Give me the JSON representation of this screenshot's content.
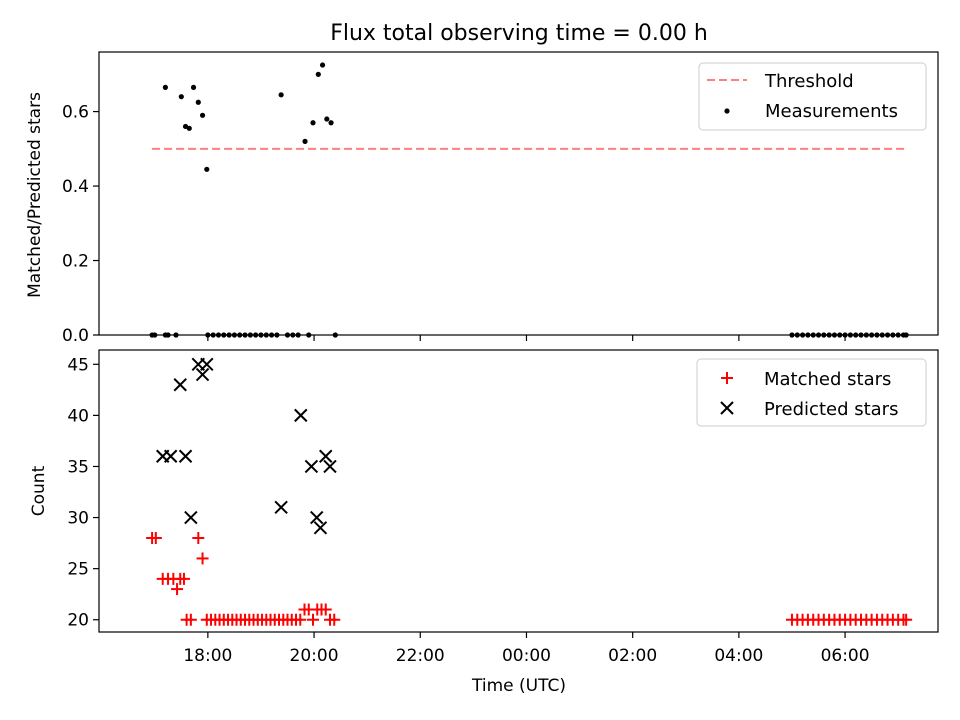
{
  "chart_data": [
    {
      "type": "scatter",
      "title": "Flux total observing time = 0.00 h",
      "xlabel": "",
      "ylabel": "Matched/Predicted stars",
      "xlim": [
        -1.05,
        14.75
      ],
      "ylim": [
        0.0,
        0.76
      ],
      "x_tick_values": [
        1,
        3,
        5,
        7,
        9,
        11,
        13
      ],
      "y_ticks": [
        {
          "value": 0.0,
          "label": "0.0"
        },
        {
          "value": 0.2,
          "label": "0.2"
        },
        {
          "value": 0.4,
          "label": "0.4"
        },
        {
          "value": 0.6,
          "label": "0.6"
        }
      ],
      "legend": {
        "position": "top-right",
        "entries": [
          "Threshold",
          "Measurements"
        ]
      },
      "colors": {
        "threshold": "#ff7f7f",
        "measurements": "#000000"
      },
      "threshold": {
        "name": "Threshold",
        "value": 0.5,
        "x_range": [
          -0.05,
          14.15
        ]
      },
      "series": [
        {
          "name": "Measurements",
          "marker": "point",
          "x": [
            -0.05,
            0.0,
            0.2,
            0.25,
            0.2,
            0.4,
            0.5,
            0.58,
            0.65,
            0.73,
            0.82,
            0.9,
            0.98,
            1.0,
            1.1,
            1.2,
            1.3,
            1.4,
            1.5,
            1.6,
            1.7,
            1.8,
            1.9,
            2.0,
            2.1,
            2.2,
            2.3,
            2.38,
            2.5,
            2.6,
            2.7,
            2.83,
            2.9,
            2.98,
            3.08,
            3.16,
            3.24,
            3.32,
            3.4,
            12.0,
            12.1,
            12.2,
            12.3,
            12.4,
            12.5,
            12.6,
            12.7,
            12.8,
            12.9,
            13.0,
            13.1,
            13.2,
            13.3,
            13.4,
            13.5,
            13.6,
            13.7,
            13.8,
            13.9,
            14.0,
            14.1,
            14.15
          ],
          "y": [
            0.0,
            0.0,
            0.665,
            0.0,
            0.0,
            0.0,
            0.64,
            0.56,
            0.555,
            0.665,
            0.625,
            0.59,
            0.445,
            0.0,
            0.0,
            0.0,
            0.0,
            0.0,
            0.0,
            0.0,
            0.0,
            0.0,
            0.0,
            0.0,
            0.0,
            0.0,
            0.0,
            0.645,
            0.0,
            0.0,
            0.0,
            0.52,
            0.0,
            0.57,
            0.7,
            0.725,
            0.58,
            0.57,
            0.0,
            0.0,
            0.0,
            0.0,
            0.0,
            0.0,
            0.0,
            0.0,
            0.0,
            0.0,
            0.0,
            0.0,
            0.0,
            0.0,
            0.0,
            0.0,
            0.0,
            0.0,
            0.0,
            0.0,
            0.0,
            0.0,
            0.0,
            0.0
          ]
        }
      ]
    },
    {
      "type": "scatter",
      "title": "",
      "xlabel": "Time (UTC)",
      "ylabel": "Count",
      "xlim": [
        -1.05,
        14.75
      ],
      "ylim": [
        18.8,
        46.4
      ],
      "x_ticks": [
        {
          "value": 1,
          "label": "18:00"
        },
        {
          "value": 3,
          "label": "20:00"
        },
        {
          "value": 5,
          "label": "22:00"
        },
        {
          "value": 7,
          "label": "00:00"
        },
        {
          "value": 9,
          "label": "02:00"
        },
        {
          "value": 11,
          "label": "04:00"
        },
        {
          "value": 13,
          "label": "06:00"
        }
      ],
      "y_ticks": [
        {
          "value": 20,
          "label": "20"
        },
        {
          "value": 25,
          "label": "25"
        },
        {
          "value": 30,
          "label": "30"
        },
        {
          "value": 35,
          "label": "35"
        },
        {
          "value": 40,
          "label": "40"
        },
        {
          "value": 45,
          "label": "45"
        }
      ],
      "legend": {
        "position": "top-right",
        "entries": [
          "Matched stars",
          "Predicted stars"
        ]
      },
      "colors": {
        "matched": "#ff0000",
        "predicted": "#000000"
      },
      "series": [
        {
          "name": "Matched stars",
          "marker": "plus",
          "x": [
            -0.05,
            0.02,
            0.15,
            0.25,
            0.35,
            0.48,
            0.42,
            0.55,
            0.6,
            0.68,
            0.82,
            0.9,
            0.98,
            1.06,
            1.14,
            1.22,
            1.3,
            1.38,
            1.46,
            1.54,
            1.62,
            1.7,
            1.78,
            1.86,
            1.94,
            2.02,
            2.1,
            2.18,
            2.26,
            2.34,
            2.42,
            2.5,
            2.58,
            2.66,
            2.74,
            2.82,
            2.9,
            2.98,
            3.06,
            3.14,
            3.22,
            3.3,
            3.38,
            12.0,
            12.1,
            12.2,
            12.3,
            12.4,
            12.5,
            12.6,
            12.7,
            12.8,
            12.9,
            13.0,
            13.1,
            13.2,
            13.3,
            13.4,
            13.5,
            13.6,
            13.7,
            13.8,
            13.9,
            14.0,
            14.1,
            14.15
          ],
          "y": [
            28,
            28,
            24,
            24,
            24,
            24,
            23,
            24,
            20,
            20,
            28,
            26,
            20,
            20,
            20,
            20,
            20,
            20,
            20,
            20,
            20,
            20,
            20,
            20,
            20,
            20,
            20,
            20,
            20,
            20,
            20,
            20,
            20,
            20,
            20,
            21,
            21,
            20,
            21,
            21,
            21,
            20,
            20,
            20,
            20,
            20,
            20,
            20,
            20,
            20,
            20,
            20,
            20,
            20,
            20,
            20,
            20,
            20,
            20,
            20,
            20,
            20,
            20,
            20,
            20,
            20
          ]
        },
        {
          "name": "Predicted stars",
          "marker": "x",
          "x": [
            0.15,
            0.3,
            0.48,
            0.58,
            0.68,
            0.82,
            0.9,
            0.98,
            2.38,
            2.75,
            2.95,
            3.05,
            3.12,
            3.22,
            3.3
          ],
          "y": [
            36,
            36,
            43,
            36,
            30,
            45,
            44,
            45,
            31,
            40,
            35,
            30,
            29,
            36,
            35
          ]
        }
      ]
    }
  ]
}
